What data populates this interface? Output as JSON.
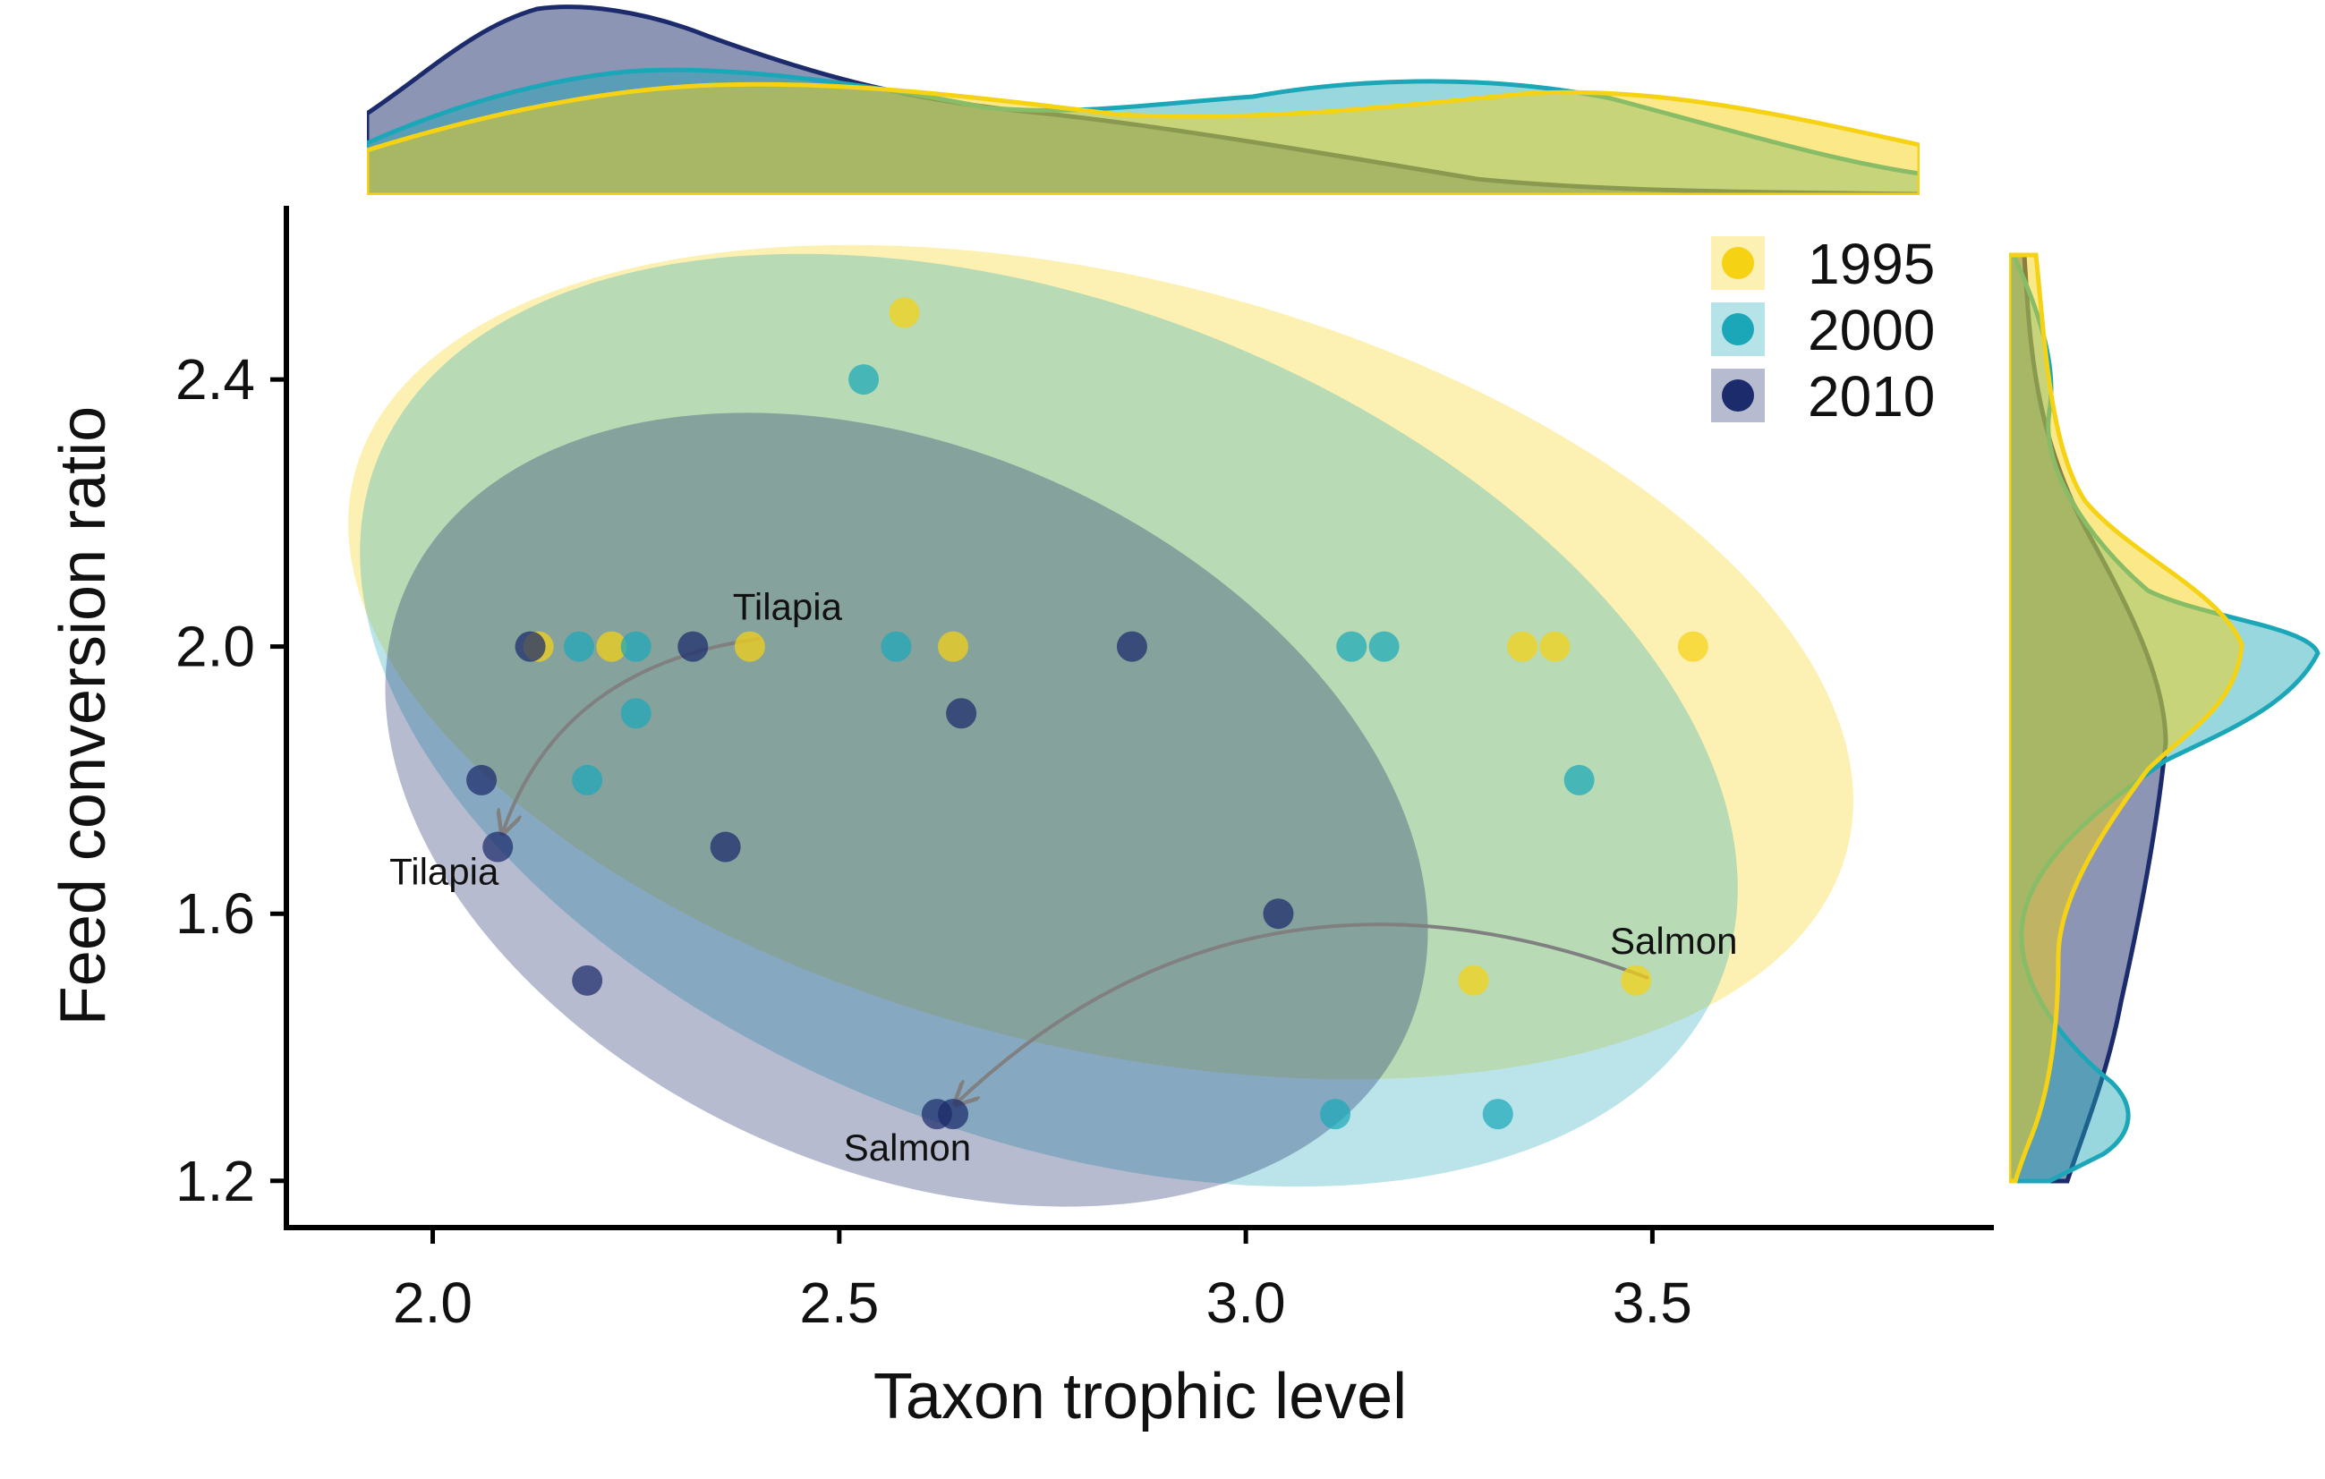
{
  "chart_data": {
    "type": "scatter",
    "title": "",
    "xlabel": "Taxon trophic level",
    "ylabel": "Feed conversion ratio",
    "xlim": [
      1.82,
      3.92
    ],
    "ylim": [
      1.13,
      2.66
    ],
    "x_ticks": [
      2.0,
      2.5,
      3.0,
      3.5
    ],
    "x_tick_labels": [
      "2.0",
      "2.5",
      "3.0",
      "3.5"
    ],
    "y_ticks": [
      1.2,
      1.6,
      2.0,
      2.4
    ],
    "y_tick_labels": [
      "1.2",
      "1.6",
      "2.0",
      "2.4"
    ],
    "grid": false,
    "legend": {
      "position": "top-right",
      "entries": [
        "1995",
        "2000",
        "2010"
      ]
    },
    "colors": {
      "1995": "#f5d214",
      "2000": "#1ca7b8",
      "2010": "#1c2b6b"
    },
    "series": [
      {
        "name": "1995",
        "points": [
          [
            2.13,
            2.0
          ],
          [
            2.22,
            2.0
          ],
          [
            2.39,
            2.0
          ],
          [
            2.58,
            2.5
          ],
          [
            2.64,
            2.0
          ],
          [
            3.28,
            1.5
          ],
          [
            3.34,
            2.0
          ],
          [
            3.38,
            2.0
          ],
          [
            3.48,
            1.5
          ],
          [
            3.55,
            2.0
          ]
        ]
      },
      {
        "name": "2000",
        "points": [
          [
            2.18,
            2.0
          ],
          [
            2.19,
            1.8
          ],
          [
            2.25,
            2.0
          ],
          [
            2.25,
            1.9
          ],
          [
            2.53,
            2.4
          ],
          [
            2.57,
            2.0
          ],
          [
            3.11,
            1.3
          ],
          [
            3.13,
            2.0
          ],
          [
            3.17,
            2.0
          ],
          [
            3.31,
            1.3
          ],
          [
            3.41,
            1.8
          ]
        ]
      },
      {
        "name": "2010",
        "points": [
          [
            2.06,
            1.8
          ],
          [
            2.08,
            1.7
          ],
          [
            2.12,
            2.0
          ],
          [
            2.19,
            1.5
          ],
          [
            2.32,
            2.0
          ],
          [
            2.36,
            1.7
          ],
          [
            2.62,
            1.3
          ],
          [
            2.64,
            1.3
          ],
          [
            2.65,
            1.9
          ],
          [
            2.86,
            2.0
          ],
          [
            3.04,
            1.6
          ]
        ]
      }
    ],
    "annotations": [
      {
        "text": "Tilapia",
        "x": 2.39,
        "y": 2.0,
        "series": "1995"
      },
      {
        "text": "Tilapia",
        "x": 2.08,
        "y": 1.7,
        "series": "2010"
      },
      {
        "text": "Salmon",
        "x": 3.48,
        "y": 1.5,
        "series": "1995"
      },
      {
        "text": "Salmon",
        "x": 2.63,
        "y": 1.3,
        "series": "2010"
      }
    ],
    "arrows": [
      {
        "from": [
          2.39,
          2.0
        ],
        "to": [
          2.08,
          1.7
        ]
      },
      {
        "from": [
          3.48,
          1.5
        ],
        "to": [
          2.63,
          1.3
        ]
      }
    ],
    "marginal_density": {
      "top": "x distribution by year",
      "right": "y distribution by year"
    }
  }
}
